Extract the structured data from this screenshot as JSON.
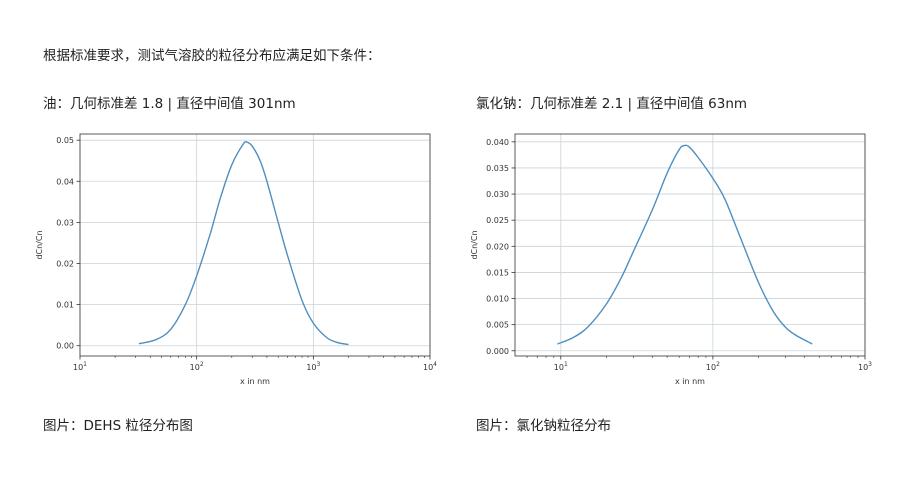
{
  "intro": "根据标准要求，测试气溶胶的粒径分布应满足如下条件：",
  "left": {
    "subtitle": "油：几何标准差 1.8 | 直径中间值 301nm",
    "caption": "图片：DEHS 粒径分布图"
  },
  "right": {
    "subtitle": "氯化钠：几何标准差 2.1 | 直径中间值 63nm",
    "caption": "图片：氯化钠粒径分布"
  },
  "chart_data": [
    {
      "type": "line",
      "xlabel": "x in nm",
      "ylabel": "dCn/Cn",
      "xscale": "log",
      "xlim": [
        10,
        10000
      ],
      "ylim": [
        -0.0025,
        0.0515
      ],
      "xticks": [
        10,
        100,
        1000,
        10000
      ],
      "xtick_labels": [
        [
          "10",
          "1"
        ],
        [
          "10",
          "2"
        ],
        [
          "10",
          "3"
        ],
        [
          "10",
          "4"
        ]
      ],
      "yticks": [
        0.0,
        0.01,
        0.02,
        0.03,
        0.04,
        0.05
      ],
      "ytick_labels": [
        "0.00",
        "0.01",
        "0.02",
        "0.03",
        "0.04",
        "0.05"
      ],
      "grid": true,
      "line_color": "#4f8fbf",
      "series": [
        {
          "x": [
            32,
            45,
            60,
            80,
            100,
            130,
            160,
            200,
            250,
            270,
            300,
            350,
            400,
            500,
            600,
            800,
            1000,
            1300,
            1600,
            2000
          ],
          "y": [
            0.0005,
            0.0015,
            0.004,
            0.01,
            0.017,
            0.027,
            0.036,
            0.044,
            0.049,
            0.0495,
            0.0485,
            0.045,
            0.04,
            0.03,
            0.022,
            0.011,
            0.0055,
            0.002,
            0.0008,
            0.0003
          ]
        }
      ]
    },
    {
      "type": "line",
      "xlabel": "x in nm",
      "ylabel": "dCn/Cn",
      "xscale": "log",
      "xlim": [
        5,
        1000
      ],
      "ylim": [
        -0.001,
        0.0415
      ],
      "xticks": [
        10,
        100,
        1000
      ],
      "xtick_labels": [
        [
          "10",
          "1"
        ],
        [
          "10",
          "2"
        ],
        [
          "10",
          "3"
        ]
      ],
      "yticks": [
        0.0,
        0.005,
        0.01,
        0.015,
        0.02,
        0.025,
        0.03,
        0.035,
        0.04
      ],
      "ytick_labels": [
        "0.000",
        "0.005",
        "0.010",
        "0.015",
        "0.020",
        "0.025",
        "0.030",
        "0.035",
        "0.040"
      ],
      "grid": true,
      "line_color": "#4f8fbf",
      "series": [
        {
          "x": [
            9.5,
            12,
            15,
            20,
            25,
            30,
            40,
            50,
            60,
            65,
            70,
            80,
            100,
            120,
            150,
            200,
            250,
            300,
            350,
            450
          ],
          "y": [
            0.0013,
            0.0025,
            0.0045,
            0.009,
            0.014,
            0.019,
            0.027,
            0.034,
            0.0385,
            0.0393,
            0.039,
            0.037,
            0.033,
            0.029,
            0.022,
            0.013,
            0.0075,
            0.0045,
            0.003,
            0.0013
          ]
        }
      ]
    }
  ]
}
